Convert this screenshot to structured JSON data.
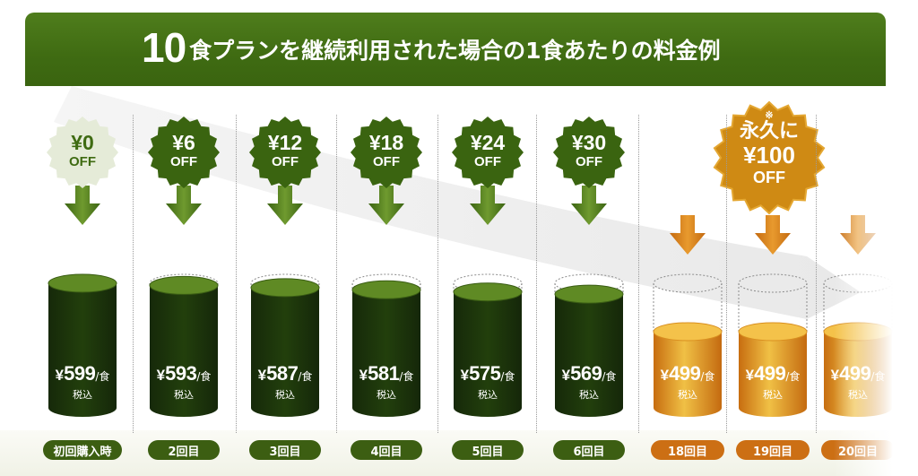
{
  "title": {
    "number": "10",
    "text": "食プランを継続利用された場合の1食あたりの料金例"
  },
  "currency_symbol": "¥",
  "unit_suffix": "/食",
  "tax_label": "税込",
  "off_label": "OFF",
  "special_badge": {
    "note": "※",
    "prefix": "永久に",
    "amount": "¥100",
    "off": "OFF"
  },
  "colors": {
    "title_bg": "#3f6b12",
    "green_dark": "#1c3506",
    "green_light": "#6f9a2f",
    "orange": "#cc6f14",
    "gold": "#e8b23a"
  },
  "chart_data": {
    "type": "bar",
    "title": "10食プランを継続利用された場合の1食あたりの料金例",
    "categories": [
      "初回購入時",
      "2回目",
      "3回目",
      "4回目",
      "5回目",
      "6回目",
      "18回目",
      "19回目",
      "20回目"
    ],
    "values": [
      599,
      593,
      587,
      581,
      575,
      569,
      499,
      499,
      499
    ],
    "discount_labels": [
      "¥0",
      "¥6",
      "¥12",
      "¥18",
      "¥24",
      "¥30"
    ],
    "discounts": [
      0,
      6,
      12,
      18,
      24,
      30,
      100,
      100,
      100
    ],
    "price_labels": [
      "599",
      "593",
      "587",
      "581",
      "575",
      "569",
      "499",
      "499",
      "499"
    ],
    "full_price": 599,
    "ylabel": "",
    "xlabel": ""
  }
}
